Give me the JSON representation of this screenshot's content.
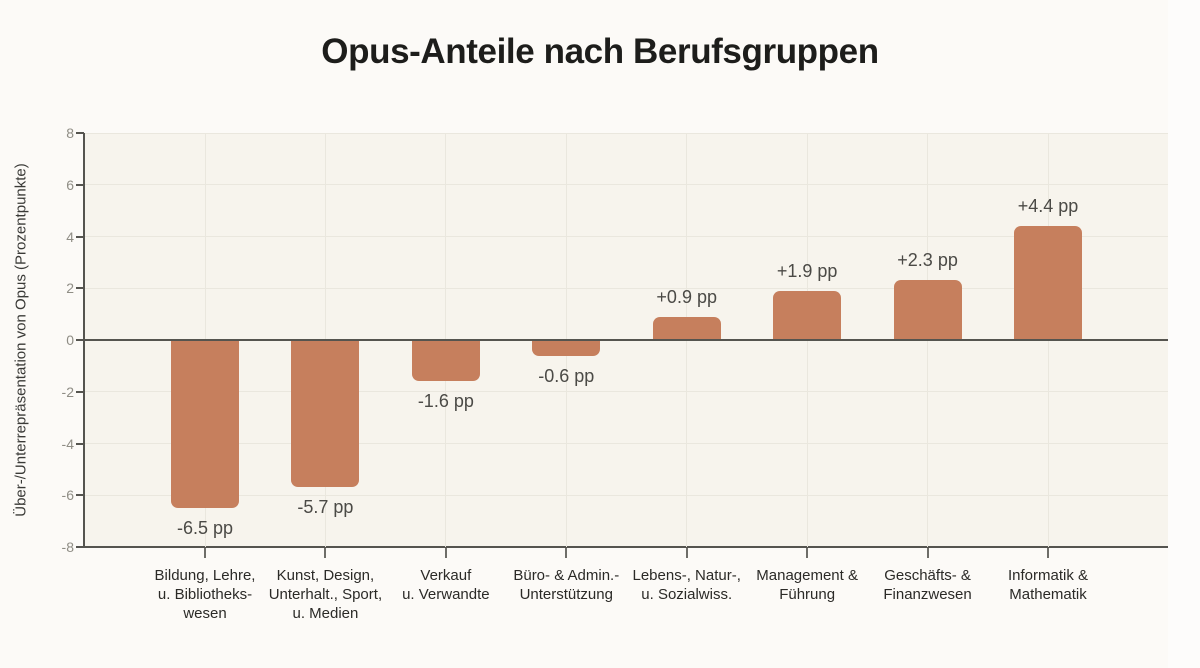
{
  "chart_data": {
    "type": "bar",
    "title": "Opus-Anteile nach Berufsgruppen",
    "ylabel": "Über-/Unterrepräsentation von Opus (Prozentpunkte)",
    "xlabel": "",
    "categories": [
      "Bildung, Lehre,\nu. Bibliotheks-\nwesen",
      "Kunst, Design,\nUnterhalt., Sport,\nu. Medien",
      "Verkauf\nu. Verwandte",
      "Büro- & Admin.-\nUnterstützung",
      "Lebens-, Natur-,\nu. Sozialwiss.",
      "Management &\nFührung",
      "Geschäfts- &\nFinanzwesen",
      "Informatik &\nMathematik"
    ],
    "values": [
      -6.5,
      -5.7,
      -1.6,
      -0.6,
      0.9,
      1.9,
      2.3,
      4.4
    ],
    "value_labels": [
      "-6.5 pp",
      "-5.7 pp",
      "-1.6 pp",
      "-0.6 pp",
      "+0.9 pp",
      "+1.9 pp",
      "+2.3 pp",
      "+4.4 pp"
    ],
    "unit": "pp",
    "ylim": [
      -8,
      8
    ],
    "yticks": [
      8,
      6,
      4,
      2,
      0,
      -2,
      -4,
      -6,
      -8
    ],
    "grid": true,
    "legend": "none"
  },
  "colors": {
    "bar": "#c67f5d",
    "page_bg": "#fcfaf7",
    "plot_bg": "#f7f4ed",
    "grid": "#eae7de",
    "axis": "#55544f",
    "y_tick_label": "#8f8d85",
    "x_tick": "#6e6d68",
    "value_label": "#4b4a46",
    "category_label": "#2b2a27",
    "y_axis_title": "#3a3a37",
    "title": "#1d1d1b"
  }
}
